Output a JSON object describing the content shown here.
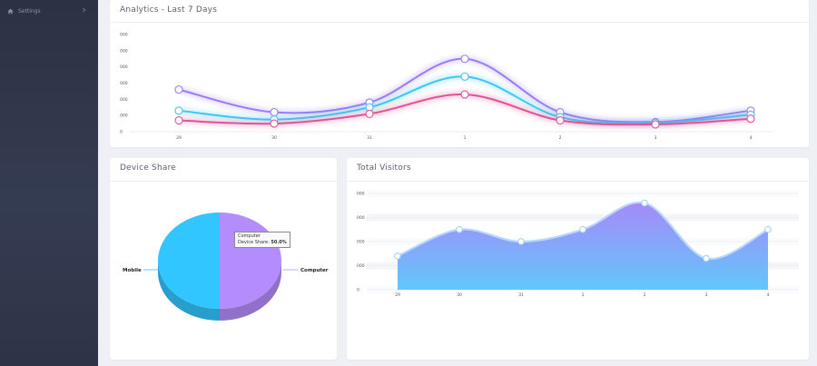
{
  "sidebar": {
    "items": [
      {
        "label": "Settings",
        "icon": "home-icon"
      }
    ]
  },
  "cards": {
    "analytics_title": "Analytics - Last 7 Days",
    "device_title": "Device Share",
    "visitors_title": "Total Visitors"
  },
  "tooltip": {
    "series": "Computer",
    "label": "Device Share",
    "value": "50.0%"
  },
  "colors": {
    "purple": "#9a7cf8",
    "cyan": "#3ec8f7",
    "pink": "#e35393",
    "sidebar": "#2e3447"
  },
  "chart_data": [
    {
      "type": "line",
      "title": "Analytics - Last 7 Days",
      "categories": [
        "29",
        "30",
        "31",
        "1",
        "2",
        "3",
        "4"
      ],
      "y_tick_labels": [
        "0",
        "000",
        "000",
        "000",
        "000",
        "000",
        "000"
      ],
      "ylim": [
        0,
        6000
      ],
      "grid": false,
      "series": [
        {
          "color": "#9a7cf8",
          "values": [
            2600,
            1200,
            1800,
            4500,
            1200,
            600,
            1300
          ]
        },
        {
          "color": "#3ec8f7",
          "values": [
            1300,
            750,
            1500,
            3400,
            900,
            550,
            1050
          ]
        },
        {
          "color": "#e35393",
          "values": [
            700,
            500,
            1100,
            2300,
            700,
            450,
            800
          ]
        }
      ]
    },
    {
      "type": "pie",
      "title": "Device Share",
      "labels": [
        "Mobile",
        "Computer"
      ],
      "values": [
        50,
        50
      ],
      "colors": [
        "#31c6ff",
        "#b58cfb"
      ]
    },
    {
      "type": "area",
      "title": "Total Visitors",
      "categories": [
        "29",
        "30",
        "31",
        "1",
        "2",
        "3",
        "4"
      ],
      "y_tick_labels": [
        "0",
        "000",
        "000",
        "000",
        "000"
      ],
      "ylim": [
        0,
        4000
      ],
      "grid": true,
      "values": [
        1400,
        2500,
        2000,
        2500,
        3600,
        1300,
        2500
      ]
    }
  ]
}
